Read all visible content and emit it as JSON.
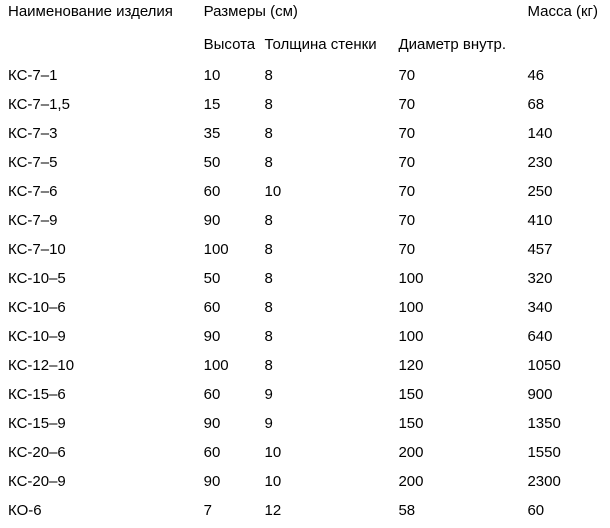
{
  "table": {
    "headers": {
      "name": "Наименование изделия",
      "sizes": "Размеры (см)",
      "mass": "Масса (кг)",
      "height": "Высота",
      "thickness": "Толщина стенки",
      "diameter": "Диаметр внутр."
    },
    "rows": [
      {
        "name": "КС-7–1",
        "h": "10",
        "t": "8",
        "d": "70",
        "m": "46"
      },
      {
        "name": "КС-7–1,5",
        "h": "15",
        "t": "8",
        "d": "70",
        "m": "68"
      },
      {
        "name": "КС-7–3",
        "h": "35",
        "t": "8",
        "d": "70",
        "m": "140"
      },
      {
        "name": "КС-7–5",
        "h": "50",
        "t": "8",
        "d": "70",
        "m": "230"
      },
      {
        "name": "КС-7–6",
        "h": "60",
        "t": "10",
        "d": "70",
        "m": "250"
      },
      {
        "name": "КС-7–9",
        "h": "90",
        "t": "8",
        "d": "70",
        "m": "410"
      },
      {
        "name": "КС-7–10",
        "h": "100",
        "t": "8",
        "d": "70",
        "m": "457"
      },
      {
        "name": "КС-10–5",
        "h": "50",
        "t": "8",
        "d": "100",
        "m": "320"
      },
      {
        "name": "КС-10–6",
        "h": "60",
        "t": "8",
        "d": "100",
        "m": "340"
      },
      {
        "name": "КС-10–9",
        "h": "90",
        "t": "8",
        "d": "100",
        "m": "640"
      },
      {
        "name": "КС-12–10",
        "h": "100",
        "t": "8",
        "d": "120",
        "m": "1050"
      },
      {
        "name": "КС-15–6",
        "h": "60",
        "t": "9",
        "d": "150",
        "m": "900"
      },
      {
        "name": "КС-15–9",
        "h": "90",
        "t": "9",
        "d": "150",
        "m": "1350"
      },
      {
        "name": "КС-20–6",
        "h": "60",
        "t": "10",
        "d": "200",
        "m": "1550"
      },
      {
        "name": "КС-20–9",
        "h": "90",
        "t": "10",
        "d": "200",
        "m": "2300"
      },
      {
        "name": "КО-6",
        "h": "7",
        "t": "12",
        "d": "58",
        "m": "60"
      }
    ]
  }
}
